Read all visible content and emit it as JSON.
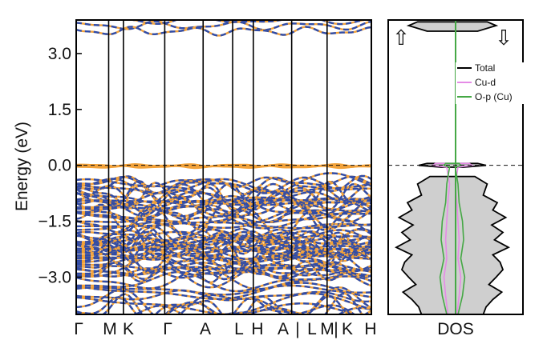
{
  "chart_data": [
    {
      "type": "line",
      "title": "",
      "xlabel": "",
      "ylabel": "Energy (eV)",
      "ylim": [
        -4.0,
        3.9
      ],
      "yticks": [
        3.0,
        1.5,
        0.0,
        -1.5,
        -3.0
      ],
      "ytick_labels": [
        "3.0",
        "1.5",
        "0.0",
        "−1.5",
        "−3.0"
      ],
      "x_kpoints": [
        "Γ",
        "M",
        "K",
        "Γ",
        "A",
        "L",
        "H",
        "A|L",
        "M|K",
        "H"
      ],
      "x_label_text": [
        "Γ",
        "M",
        "K",
        "Γ",
        "A",
        "L",
        "H",
        "A",
        "|",
        "L",
        "M",
        "|",
        "K",
        "H"
      ],
      "kpath_positions": [
        0.0,
        0.11,
        0.16,
        0.3,
        0.43,
        0.53,
        0.6,
        0.73,
        0.85,
        1.0
      ],
      "fermi_level": 0.0,
      "series": [
        {
          "style": "solid",
          "color": "#F2A23A",
          "bands_summary": {
            "conduction_band_energies_at_gamma": [
              3.9,
              3.75,
              3.6
            ],
            "flat_band_near_fermi": 0.0,
            "valence_range": [
              -4.0,
              -0.3
            ]
          }
        },
        {
          "style": "dashed",
          "color": "#2E4BA8",
          "bands_summary": {
            "conduction_band_energies_at_gamma": [
              3.85,
              3.7,
              3.55
            ],
            "valence_range": [
              -4.0,
              -0.3
            ]
          }
        }
      ]
    },
    {
      "type": "area",
      "title": "",
      "xlabel": "DOS",
      "ylabel": "",
      "ylim": [
        -4.0,
        3.9
      ],
      "fermi_level": 0.0,
      "spin_symbols": [
        "⇧",
        "⇩"
      ],
      "legend": {
        "position": "top-right",
        "entries": [
          {
            "name": "Total",
            "color": "#000000"
          },
          {
            "name": "Cu-d",
            "color": "#E58BE6"
          },
          {
            "name": "O-p (Cu)",
            "color": "#45A845"
          }
        ]
      },
      "series": [
        {
          "name": "Total",
          "color": "#000000",
          "fill": "#CFCFCF",
          "energies": [
            3.85,
            3.75,
            3.6,
            0.05,
            0.0,
            -0.05,
            -0.3,
            -0.5,
            -0.8,
            -1.0,
            -1.2,
            -1.4,
            -1.6,
            -1.8,
            -2.0,
            -2.2,
            -2.4,
            -2.6,
            -2.8,
            -3.0,
            -3.2,
            -3.4,
            -3.6,
            -3.8,
            -4.0
          ],
          "values": [
            0.62,
            0.78,
            0.45,
            0.45,
            0.6,
            0.2,
            0.4,
            0.62,
            0.55,
            0.8,
            0.72,
            0.95,
            0.7,
            0.9,
            0.75,
            1.0,
            0.72,
            0.85,
            0.9,
            0.78,
            0.65,
            0.88,
            0.72,
            0.6,
            0.55
          ]
        },
        {
          "name": "Cu-d",
          "color": "#E58BE6",
          "energies": [
            0.05,
            0.0,
            -0.05,
            -0.5,
            -1.0,
            -1.5,
            -2.0,
            -2.5,
            -3.0,
            -3.5,
            -4.0
          ],
          "values": [
            0.3,
            0.35,
            0.1,
            0.05,
            0.08,
            0.1,
            0.12,
            0.1,
            0.15,
            0.12,
            0.08
          ]
        },
        {
          "name": "O-p (Cu)",
          "color": "#45A845",
          "energies": [
            0.05,
            0.0,
            -0.05,
            -0.5,
            -1.0,
            -1.5,
            -2.0,
            -2.5,
            -3.0,
            -3.5,
            -4.0
          ],
          "values": [
            0.12,
            0.15,
            0.05,
            0.1,
            0.12,
            0.18,
            0.2,
            0.15,
            0.22,
            0.18,
            0.1
          ]
        }
      ]
    }
  ]
}
